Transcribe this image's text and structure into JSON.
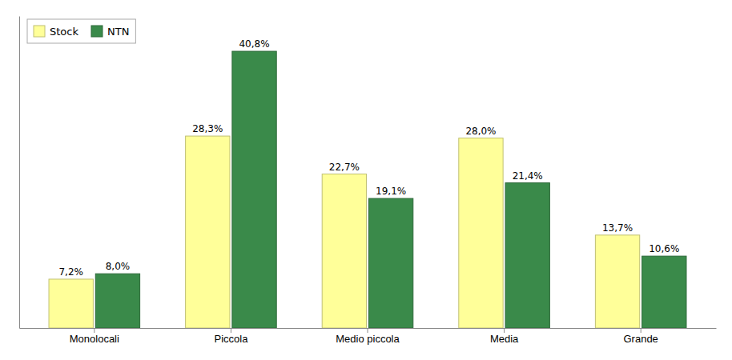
{
  "chart_data": {
    "type": "bar",
    "categories": [
      "Monolocali",
      "Piccola",
      "Medio piccola",
      "Media",
      "Grande"
    ],
    "series": [
      {
        "name": "Stock",
        "color": "#FFFF99",
        "values": [
          7.2,
          28.3,
          22.7,
          28.0,
          13.7
        ],
        "value_labels": [
          "7,2%",
          "28,3%",
          "22,7%",
          "28,0%",
          "13,7%"
        ]
      },
      {
        "name": "NTN",
        "color": "#3A8A4A",
        "values": [
          8.0,
          40.8,
          19.1,
          21.4,
          10.6
        ],
        "value_labels": [
          "8,0%",
          "40,8%",
          "19,1%",
          "21,4%",
          "10,6%"
        ]
      }
    ],
    "ylim": [
      0,
      46
    ],
    "data_labels": true,
    "tick_labels": "x",
    "legend": "upper left"
  }
}
